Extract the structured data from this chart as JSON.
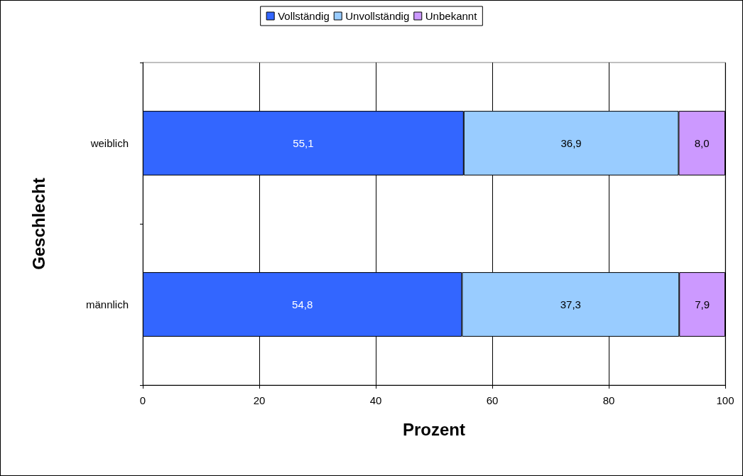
{
  "chart_data": {
    "type": "bar",
    "orientation": "horizontal",
    "stacked": true,
    "categories": [
      "weiblich",
      "männlich"
    ],
    "series": [
      {
        "name": "Vollständig",
        "color": "#3366ff",
        "values": [
          55.1,
          54.8
        ],
        "value_labels": [
          "55,1",
          "54,8"
        ]
      },
      {
        "name": "Unvollständig",
        "color": "#99ccff",
        "values": [
          36.9,
          37.3
        ],
        "value_labels": [
          "36,9",
          "37,3"
        ]
      },
      {
        "name": "Unbekannt",
        "color": "#cc99ff",
        "values": [
          8.0,
          7.9
        ],
        "value_labels": [
          "8,0",
          "7,9"
        ]
      }
    ],
    "xlim": [
      0,
      100
    ],
    "xticks": [
      0,
      20,
      40,
      60,
      80,
      100
    ],
    "xlabel": "Prozent",
    "ylabel": "Geschlecht",
    "grid": "x",
    "legend": "top"
  }
}
